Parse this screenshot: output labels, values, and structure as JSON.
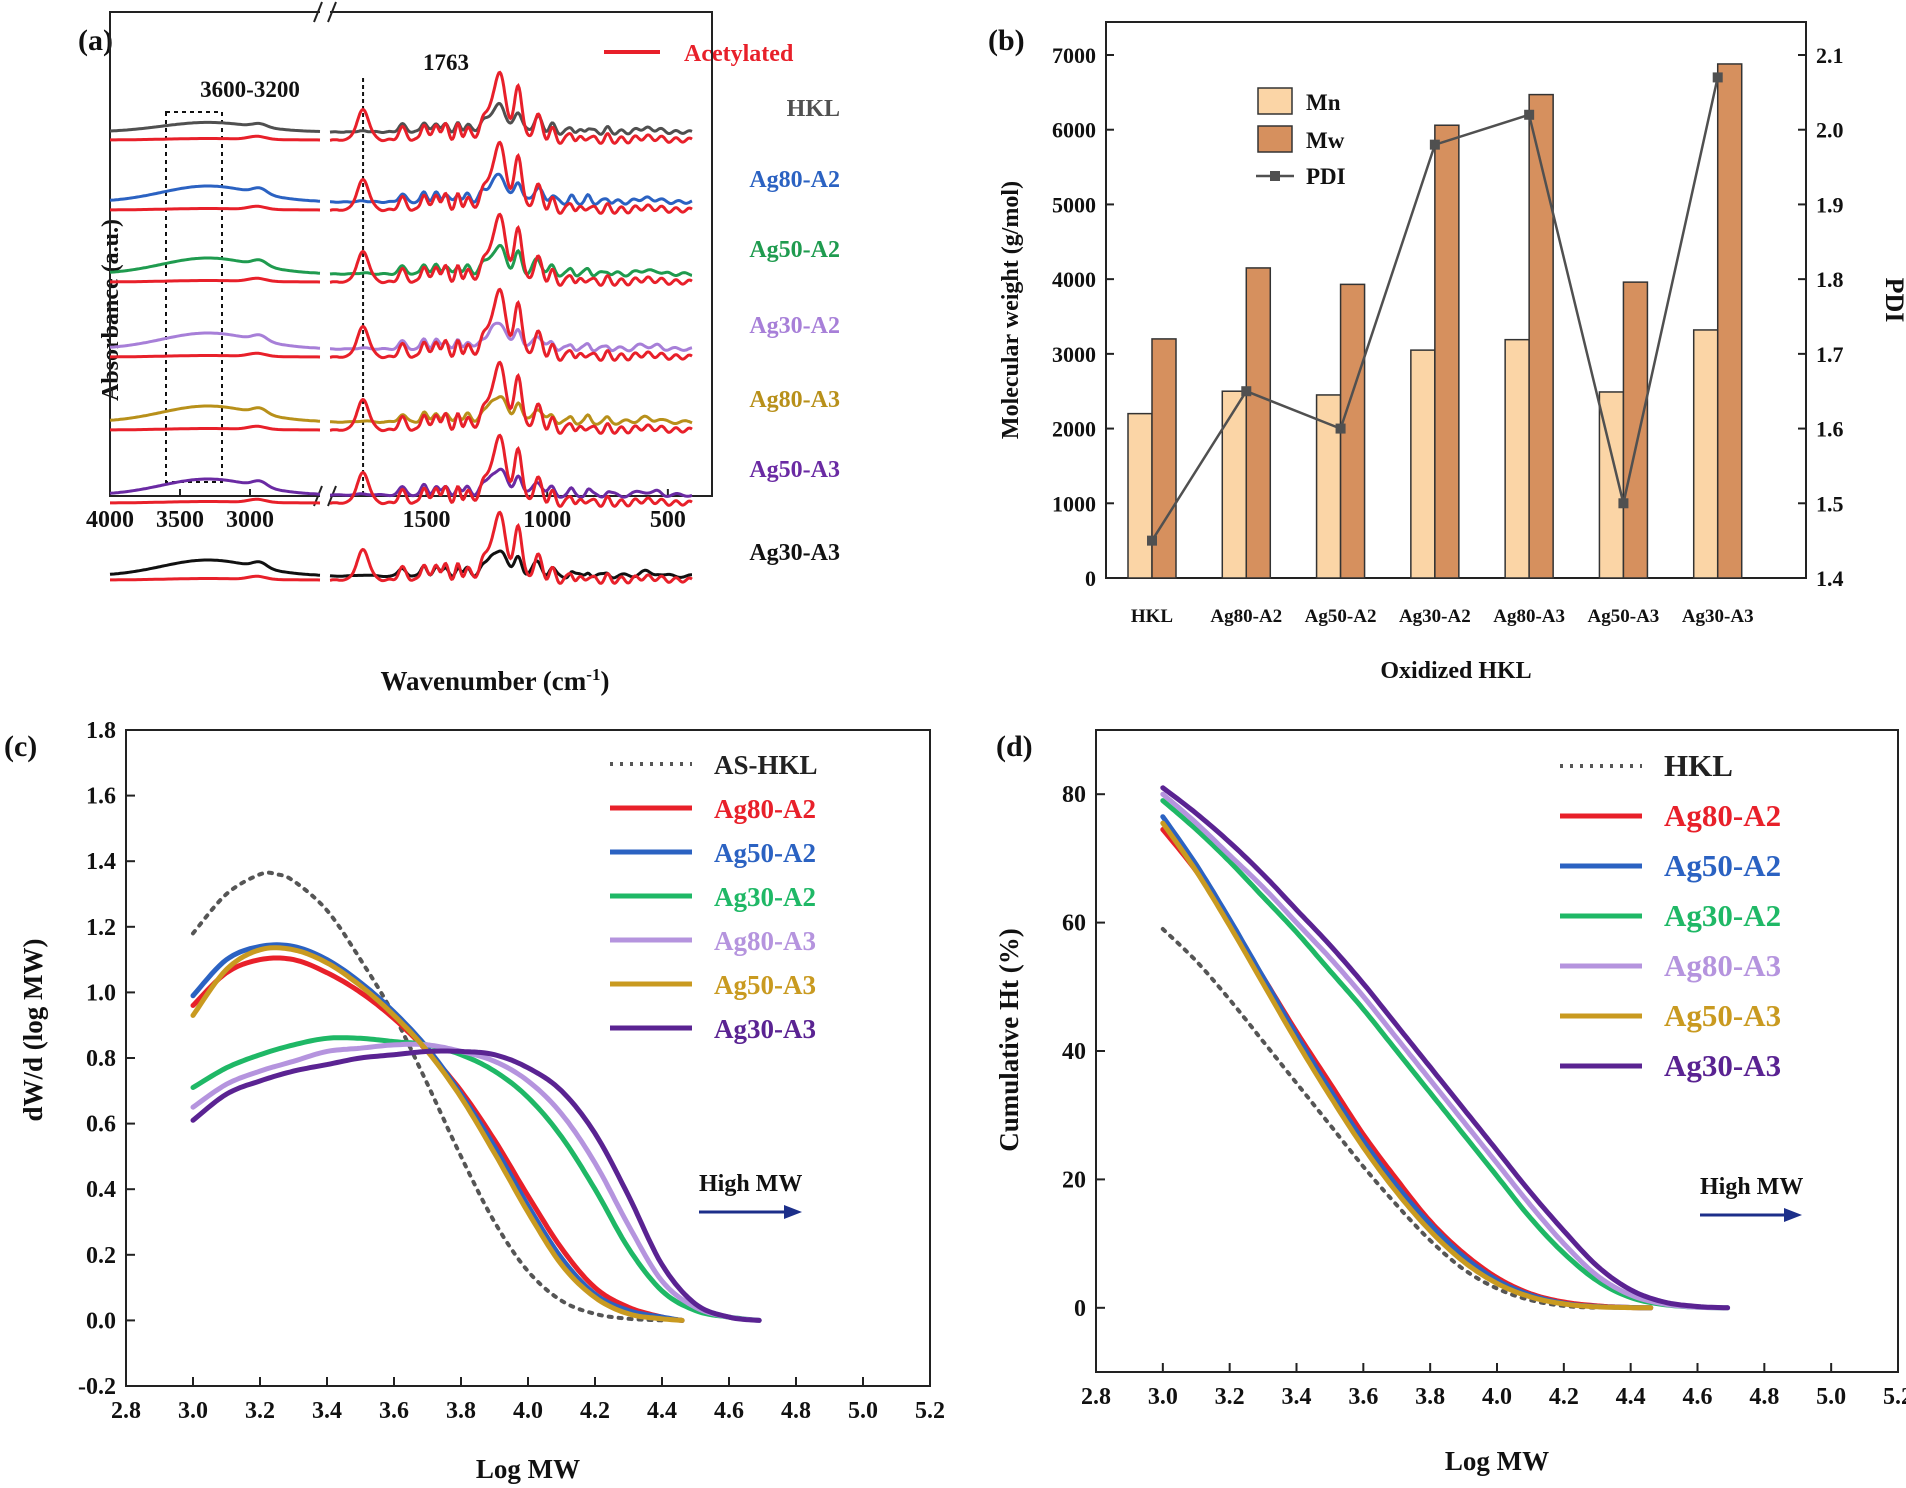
{
  "figure": {
    "panel_a": {
      "label": "(a)",
      "ylabel": "Absorbance (a.u.)",
      "xlabel": "Wavenumber (cm-1)",
      "xlabel_main": "Wavenumber (cm",
      "xlabel_sup": "-1",
      "xlabel_end": ")",
      "box_label": "3600-3200",
      "peak_label": "1763",
      "legend_label": "Acetylated"
    },
    "panel_b": {
      "label": "(b)"
    },
    "panel_c": {
      "label": "(c)",
      "arrow_label": "High MW"
    },
    "panel_d": {
      "label": "(d)",
      "arrow_label": "High MW"
    }
  },
  "chart_data": [
    {
      "id": "a",
      "type": "line",
      "title": "",
      "xlabel": "Wavenumber (cm-1)",
      "ylabel": "Absorbance (a.u.)",
      "x_broken_axis": true,
      "x_reversed": true,
      "xlim": [
        4000,
        400
      ],
      "x_break": [
        2500,
        1900
      ],
      "x_ticks": [
        4000,
        3500,
        3000,
        1500,
        1000,
        500
      ],
      "y_ticks_shown": false,
      "highlight_box": {
        "from": 3600,
        "to": 3200,
        "label": "3600-3200"
      },
      "reference_line": {
        "x": 1763,
        "label": "1763"
      },
      "acetylated_color": "#e8202a",
      "acetylated_label": "Acetylated",
      "peaks": [
        [
          1763,
          0.5,
          25
        ],
        [
          1600,
          0.35,
          15
        ],
        [
          1510,
          0.45,
          12
        ],
        [
          1460,
          0.45,
          12
        ],
        [
          1420,
          0.42,
          12
        ],
        [
          1370,
          0.4,
          10
        ],
        [
          1330,
          0.35,
          12
        ],
        [
          1270,
          0.4,
          15
        ],
        [
          1230,
          0.7,
          20
        ],
        [
          1190,
          1.0,
          22
        ],
        [
          1120,
          0.95,
          15
        ],
        [
          1040,
          0.6,
          18
        ],
        [
          980,
          0.35,
          12
        ],
        [
          900,
          0.3,
          10
        ],
        [
          830,
          0.25,
          10
        ],
        [
          750,
          0.2,
          10
        ],
        [
          600,
          0.2,
          25
        ],
        [
          540,
          0.18,
          15
        ]
      ],
      "series": [
        {
          "name": "HKL",
          "color": "#505050"
        },
        {
          "name": "Ag80-A2",
          "color": "#2b62c2"
        },
        {
          "name": "Ag50-A2",
          "color": "#1f9b4f"
        },
        {
          "name": "Ag30-A2",
          "color": "#a77fd8"
        },
        {
          "name": "Ag80-A3",
          "color": "#b8901a"
        },
        {
          "name": "Ag50-A3",
          "color": "#6a2aa3"
        },
        {
          "name": "Ag30-A3",
          "color": "#111111"
        }
      ]
    },
    {
      "id": "b",
      "type": "bar",
      "title": "",
      "xlabel": "Oxidized HKL",
      "ylabel": "Molecular weight (g/mol)",
      "ylabel_right": "PDI",
      "categories": [
        "HKL",
        "Ag80-A2",
        "Ag50-A2",
        "Ag30-A2",
        "Ag80-A3",
        "Ag50-A3",
        "Ag30-A3"
      ],
      "series": [
        {
          "name": "Mn",
          "color": "#fbd5a6",
          "values": [
            2200,
            2500,
            2450,
            3050,
            3190,
            2490,
            3320
          ]
        },
        {
          "name": "Mw",
          "color": "#d6905e",
          "values": [
            3200,
            4150,
            3930,
            6060,
            6470,
            3960,
            6880
          ]
        },
        {
          "name": "PDI",
          "type": "line",
          "axis": "right",
          "color": "#505050",
          "values": [
            1.45,
            1.65,
            1.6,
            1.98,
            2.02,
            1.5,
            2.07
          ]
        }
      ],
      "ylim": [
        0,
        7000
      ],
      "y_ticks": [
        0,
        1000,
        2000,
        3000,
        4000,
        5000,
        6000,
        7000
      ],
      "ylim_right": [
        1.4,
        2.1
      ],
      "y_ticks_right": [
        "1.4",
        "1.5",
        "1.6",
        "1.7",
        "1.8",
        "1.9",
        "2.0",
        "2.1"
      ],
      "legend_position": "top-left"
    },
    {
      "id": "c",
      "type": "line",
      "title": "",
      "xlabel": "Log MW",
      "ylabel": "dW/d (log MW)",
      "xlim": [
        2.8,
        5.2
      ],
      "x_ticks": [
        "2.8",
        "3.0",
        "3.2",
        "3.4",
        "3.6",
        "3.8",
        "4.0",
        "4.2",
        "4.4",
        "4.6",
        "4.8",
        "5.0",
        "5.2"
      ],
      "ylim": [
        -0.2,
        1.8
      ],
      "y_ticks": [
        "-0.2",
        "0.0",
        "0.2",
        "0.4",
        "0.6",
        "0.8",
        "1.0",
        "1.2",
        "1.4",
        "1.6",
        "1.8"
      ],
      "legend_position": "top-right",
      "series": [
        {
          "name": "AS-HKL",
          "color": "#555555",
          "dashed": true,
          "x": [
            3.0,
            3.1,
            3.2,
            3.25,
            3.3,
            3.4,
            3.5,
            3.6,
            3.7,
            3.8,
            3.9,
            4.0,
            4.1,
            4.2,
            4.3,
            4.4
          ],
          "y": [
            1.18,
            1.3,
            1.36,
            1.36,
            1.34,
            1.25,
            1.1,
            0.93,
            0.72,
            0.5,
            0.3,
            0.15,
            0.06,
            0.02,
            0.005,
            0.0
          ]
        },
        {
          "name": "Ag80-A2",
          "color": "#e8202a",
          "x": [
            3.0,
            3.1,
            3.2,
            3.3,
            3.4,
            3.5,
            3.6,
            3.7,
            3.8,
            3.9,
            4.0,
            4.1,
            4.2,
            4.3,
            4.4,
            4.46
          ],
          "y": [
            0.96,
            1.06,
            1.1,
            1.1,
            1.06,
            1.0,
            0.92,
            0.82,
            0.7,
            0.55,
            0.38,
            0.22,
            0.1,
            0.04,
            0.01,
            0.0
          ]
        },
        {
          "name": "Ag50-A2",
          "color": "#2b62c2",
          "x": [
            3.0,
            3.1,
            3.2,
            3.3,
            3.4,
            3.5,
            3.6,
            3.7,
            3.8,
            3.9,
            4.0,
            4.1,
            4.2,
            4.3,
            4.4,
            4.46
          ],
          "y": [
            0.99,
            1.1,
            1.14,
            1.14,
            1.1,
            1.03,
            0.94,
            0.83,
            0.69,
            0.53,
            0.35,
            0.19,
            0.08,
            0.03,
            0.01,
            0.0
          ]
        },
        {
          "name": "Ag30-A2",
          "color": "#1fb866",
          "x": [
            3.0,
            3.1,
            3.2,
            3.3,
            3.4,
            3.5,
            3.6,
            3.7,
            3.8,
            3.9,
            4.0,
            4.1,
            4.2,
            4.3,
            4.4,
            4.5,
            4.6,
            4.69
          ],
          "y": [
            0.71,
            0.77,
            0.81,
            0.84,
            0.86,
            0.86,
            0.85,
            0.84,
            0.81,
            0.76,
            0.68,
            0.56,
            0.4,
            0.22,
            0.09,
            0.03,
            0.01,
            0.0
          ]
        },
        {
          "name": "Ag80-A3",
          "color": "#b594de",
          "x": [
            3.0,
            3.1,
            3.2,
            3.3,
            3.4,
            3.5,
            3.6,
            3.7,
            3.8,
            3.9,
            4.0,
            4.1,
            4.2,
            4.3,
            4.4,
            4.5,
            4.6,
            4.69
          ],
          "y": [
            0.65,
            0.72,
            0.76,
            0.79,
            0.82,
            0.83,
            0.84,
            0.84,
            0.82,
            0.79,
            0.73,
            0.63,
            0.48,
            0.29,
            0.12,
            0.04,
            0.01,
            0.0
          ]
        },
        {
          "name": "Ag50-A3",
          "color": "#c99a20",
          "x": [
            3.0,
            3.1,
            3.2,
            3.3,
            3.4,
            3.5,
            3.6,
            3.7,
            3.8,
            3.9,
            4.0,
            4.1,
            4.2,
            4.3,
            4.4,
            4.46
          ],
          "y": [
            0.93,
            1.07,
            1.13,
            1.13,
            1.09,
            1.02,
            0.93,
            0.82,
            0.68,
            0.51,
            0.33,
            0.17,
            0.07,
            0.02,
            0.005,
            0.0
          ]
        },
        {
          "name": "Ag30-A3",
          "color": "#5a2392",
          "x": [
            3.0,
            3.1,
            3.2,
            3.3,
            3.4,
            3.5,
            3.6,
            3.7,
            3.8,
            3.9,
            4.0,
            4.1,
            4.2,
            4.3,
            4.4,
            4.5,
            4.6,
            4.69
          ],
          "y": [
            0.61,
            0.69,
            0.73,
            0.76,
            0.78,
            0.8,
            0.81,
            0.82,
            0.82,
            0.81,
            0.77,
            0.7,
            0.57,
            0.38,
            0.17,
            0.05,
            0.01,
            0.0
          ]
        }
      ]
    },
    {
      "id": "d",
      "type": "line",
      "title": "",
      "xlabel": "Log MW",
      "ylabel": "Cumulative Ht (%)",
      "xlim": [
        2.8,
        5.2
      ],
      "x_ticks": [
        "2.8",
        "3.0",
        "3.2",
        "3.4",
        "3.6",
        "3.8",
        "4.0",
        "4.2",
        "4.4",
        "4.6",
        "4.8",
        "5.0",
        "5.2"
      ],
      "ylim": [
        -10,
        90
      ],
      "y_ticks": [
        "0",
        "20",
        "40",
        "60",
        "80"
      ],
      "legend_position": "top-right",
      "series": [
        {
          "name": "HKL",
          "color": "#555555",
          "dashed": true,
          "x": [
            3.0,
            3.1,
            3.2,
            3.3,
            3.4,
            3.5,
            3.6,
            3.7,
            3.8,
            3.9,
            4.0,
            4.1,
            4.2,
            4.3
          ],
          "y": [
            59,
            54,
            48,
            41.5,
            35,
            28.5,
            22,
            16,
            10.5,
            6,
            3,
            1.2,
            0.3,
            0
          ]
        },
        {
          "name": "Ag80-A2",
          "color": "#e8202a",
          "x": [
            3.0,
            3.1,
            3.2,
            3.3,
            3.4,
            3.5,
            3.6,
            3.7,
            3.8,
            3.9,
            4.0,
            4.1,
            4.2,
            4.3,
            4.4,
            4.46
          ],
          "y": [
            74.5,
            68,
            60,
            51.5,
            43,
            35,
            27,
            20,
            13.5,
            8.5,
            4.7,
            2.2,
            0.9,
            0.3,
            0.05,
            0
          ]
        },
        {
          "name": "Ag50-A2",
          "color": "#2b62c2",
          "x": [
            3.0,
            3.1,
            3.2,
            3.3,
            3.4,
            3.5,
            3.6,
            3.7,
            3.8,
            3.9,
            4.0,
            4.1,
            4.2,
            4.3,
            4.4,
            4.46
          ],
          "y": [
            76.5,
            69,
            60.5,
            51.5,
            42.5,
            34,
            26,
            19,
            13,
            8,
            4.3,
            2,
            0.7,
            0.2,
            0.05,
            0
          ]
        },
        {
          "name": "Ag30-A2",
          "color": "#1fb866",
          "x": [
            3.0,
            3.1,
            3.2,
            3.3,
            3.4,
            3.5,
            3.6,
            3.7,
            3.8,
            3.9,
            4.0,
            4.1,
            4.2,
            4.3,
            4.4,
            4.5,
            4.6,
            4.69
          ],
          "y": [
            79,
            74.5,
            69.5,
            64,
            58.5,
            52.5,
            46.5,
            40,
            33.5,
            27,
            20.5,
            14,
            8.5,
            4.2,
            1.6,
            0.5,
            0.1,
            0
          ]
        },
        {
          "name": "Ag80-A3",
          "color": "#b594de",
          "x": [
            3.0,
            3.1,
            3.2,
            3.3,
            3.4,
            3.5,
            3.6,
            3.7,
            3.8,
            3.9,
            4.0,
            4.1,
            4.2,
            4.3,
            4.4,
            4.5,
            4.6,
            4.69
          ],
          "y": [
            80,
            75.5,
            70.5,
            65.5,
            60,
            54.5,
            48.5,
            42,
            35.5,
            29,
            22.5,
            16,
            10,
            5,
            2,
            0.6,
            0.1,
            0
          ]
        },
        {
          "name": "Ag50-A3",
          "color": "#c99a20",
          "x": [
            3.0,
            3.1,
            3.2,
            3.3,
            3.4,
            3.5,
            3.6,
            3.7,
            3.8,
            3.9,
            4.0,
            4.1,
            4.2,
            4.3,
            4.4,
            4.46
          ],
          "y": [
            75.5,
            68,
            59.5,
            50.5,
            41.5,
            33,
            25,
            18,
            12,
            7.2,
            3.8,
            1.7,
            0.6,
            0.15,
            0.03,
            0
          ]
        },
        {
          "name": "Ag30-A3",
          "color": "#5a2392",
          "x": [
            3.0,
            3.1,
            3.2,
            3.3,
            3.4,
            3.5,
            3.6,
            3.7,
            3.8,
            3.9,
            4.0,
            4.1,
            4.2,
            4.3,
            4.4,
            4.5,
            4.6,
            4.69
          ],
          "y": [
            81,
            77,
            72.5,
            67.5,
            62,
            56.5,
            50.5,
            44,
            37.5,
            31,
            24.5,
            18,
            12,
            6.5,
            2.8,
            0.9,
            0.2,
            0
          ]
        }
      ]
    }
  ]
}
